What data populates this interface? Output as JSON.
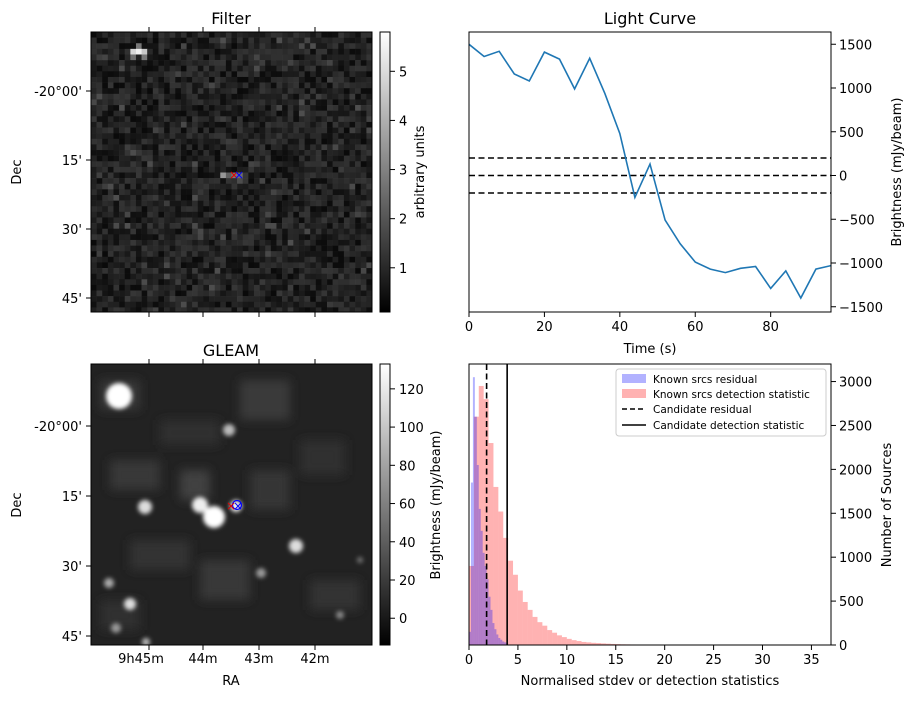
{
  "panels": {
    "filter": {
      "title": "Filter",
      "ylabel": "Dec",
      "colorbar_label": "arbitrary units",
      "colorbar_ticks": [
        "1",
        "2",
        "3",
        "4",
        "5"
      ],
      "colorbar_range": [
        0.1,
        5.8
      ],
      "dec_ticks": [
        "-20°00'",
        "15'",
        "30'",
        "45'"
      ],
      "markers": [
        "×",
        "×"
      ]
    },
    "gleam": {
      "title": "GLEAM",
      "ylabel": "Dec",
      "xlabel": "RA",
      "colorbar_label": "Brightness (mJy/beam)",
      "colorbar_ticks": [
        "0",
        "20",
        "40",
        "60",
        "80",
        "100",
        "120"
      ],
      "colorbar_range": [
        -14,
        133
      ],
      "dec_ticks": [
        "-20°00'",
        "15'",
        "30'",
        "45'"
      ],
      "ra_ticks": [
        "9h45m",
        "44m",
        "43m",
        "42m"
      ],
      "markers": [
        "×",
        "×"
      ]
    }
  },
  "chart_data": [
    {
      "type": "line",
      "title": "Light Curve",
      "xlabel": "Time (s)",
      "ylabel": "Brightness (mJy/beam)",
      "xlim": [
        0,
        96
      ],
      "ylim": [
        -1560,
        1640
      ],
      "xticks": [
        0,
        20,
        40,
        60,
        80
      ],
      "yticks": [
        -1500,
        -1000,
        -500,
        0,
        500,
        1000,
        1500
      ],
      "series": [
        {
          "color": "#1f77b4",
          "x": [
            0,
            4,
            8,
            12,
            16,
            20,
            24,
            28,
            32,
            36,
            40,
            44,
            48,
            52,
            56,
            60,
            64,
            68,
            72,
            76,
            80,
            84,
            88,
            92,
            96
          ],
          "y": [
            1500,
            1360,
            1420,
            1160,
            1080,
            1410,
            1330,
            990,
            1340,
            940,
            480,
            -250,
            130,
            -510,
            -780,
            -990,
            -1070,
            -1110,
            -1060,
            -1040,
            -1290,
            -1090,
            -1400,
            -1070,
            -1030
          ]
        }
      ],
      "hlines": [
        {
          "y": 200,
          "style": "dashed",
          "color": "#000000"
        },
        {
          "y": 0,
          "style": "dashed",
          "color": "#000000"
        },
        {
          "y": -200,
          "style": "dashed",
          "color": "#000000"
        }
      ]
    },
    {
      "type": "bar",
      "xlabel": "Normalised stdev or detection statistics",
      "ylabel": "Number of Sources",
      "xlim": [
        0,
        37
      ],
      "ylim": [
        0,
        3200
      ],
      "xticks": [
        0,
        5,
        10,
        15,
        20,
        25,
        30,
        35
      ],
      "yticks": [
        0,
        500,
        1000,
        1500,
        2000,
        2500,
        3000
      ],
      "legend_position": "top-right",
      "series": [
        {
          "name": "Known srcs residual",
          "color": "#0000ff",
          "bin_start": 0,
          "bin_width": 0.2,
          "values": [
            150,
            1850,
            3050,
            2600,
            2050,
            1550,
            1300,
            1050,
            900,
            750,
            550,
            400,
            250,
            180,
            120,
            80,
            60,
            40,
            30,
            20
          ]
        },
        {
          "name": "Known srcs detection statistic",
          "color": "#ff0000",
          "bin_start": 0,
          "bin_width": 0.5,
          "values": [
            900,
            2600,
            2950,
            2800,
            2300,
            1800,
            1520,
            1220,
            960,
            800,
            620,
            490,
            400,
            320,
            260,
            220,
            170,
            140,
            110,
            90,
            70,
            55,
            45,
            35,
            30,
            25,
            22,
            18,
            15,
            12,
            10,
            8,
            7,
            6,
            5,
            5,
            4,
            4,
            3,
            3,
            3,
            2,
            2,
            2,
            2,
            2,
            2,
            1,
            1,
            1,
            1,
            1,
            1,
            1,
            1,
            1,
            1,
            1,
            1,
            1,
            1,
            1,
            1,
            1,
            1,
            1,
            1,
            1,
            1,
            1,
            1,
            1
          ]
        },
        {
          "name": "Candidate residual",
          "type": "vline",
          "x": 1.8,
          "style": "dashed",
          "color": "#000000"
        },
        {
          "name": "Candidate detection statistic",
          "type": "vline",
          "x": 3.9,
          "style": "solid",
          "color": "#000000"
        }
      ]
    }
  ]
}
